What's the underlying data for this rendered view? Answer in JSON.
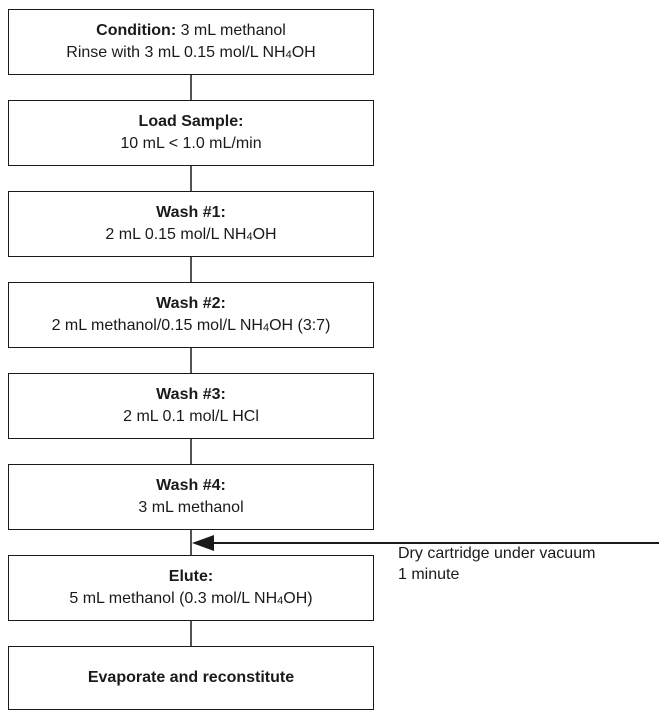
{
  "steps": [
    {
      "label": "Condition:",
      "line1_rest": " 3 mL methanol",
      "line2_pre": "Rinse with 3 mL 0.15 mol/L NH",
      "line2_sub": "4",
      "line2_post": "OH"
    },
    {
      "label": "Load Sample:",
      "line": "10 mL < 1.0 mL/min"
    },
    {
      "label": "Wash #1:",
      "line_pre": "2 mL 0.15 mol/L NH",
      "line_sub": "4",
      "line_post": "OH"
    },
    {
      "label": "Wash #2:",
      "line_pre": "2 mL methanol/0.15 mol/L NH",
      "line_sub": "4",
      "line_post": "OH (3:7)"
    },
    {
      "label": "Wash #3:",
      "line": "2 mL 0.1 mol/L HCl"
    },
    {
      "label": "Wash #4:",
      "line": "3 mL methanol"
    },
    {
      "label": "Elute:",
      "line_pre": "5 mL methanol (0.3 mol/L NH",
      "line_sub": "4",
      "line_post": "OH)"
    },
    {
      "label": "Evaporate and reconstitute"
    }
  ],
  "side_note": {
    "line1": "Dry cartridge under vacuum",
    "line2": "1 minute"
  }
}
